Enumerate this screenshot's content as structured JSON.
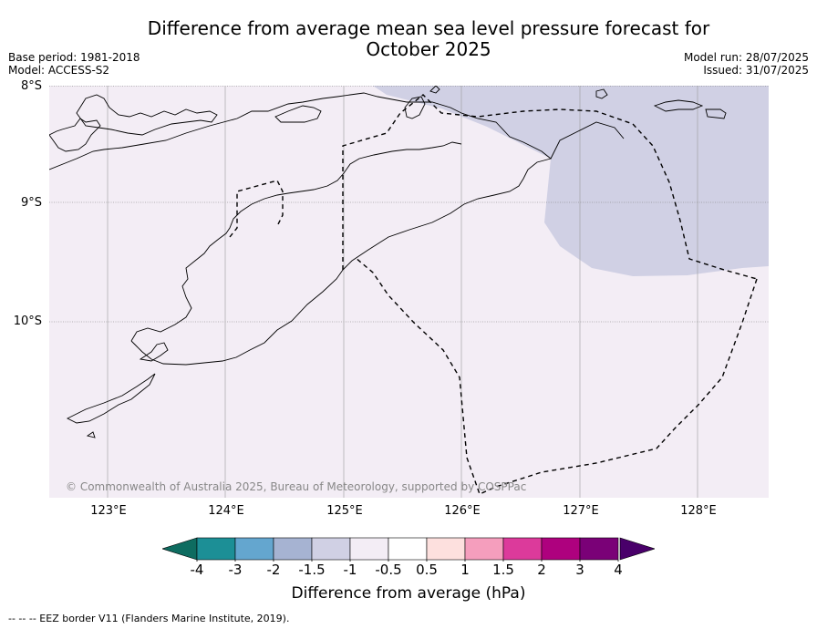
{
  "title": {
    "line1": "Difference from average mean sea level pressure forecast for",
    "line2": "October 2025"
  },
  "meta": {
    "base_period": "Base period: 1981-2018",
    "model": "Model: ACCESS-S2",
    "model_run": "Model run: 28/07/2025",
    "issued": "Issued: 31/07/2025"
  },
  "map": {
    "latitude_labels": [
      "8°S",
      "9°S",
      "10°S"
    ],
    "longitude_labels": [
      "123°E",
      "124°E",
      "125°E",
      "126°E",
      "127°E",
      "128°E"
    ],
    "copyright": "© Commonwealth of Australia 2025, Bureau of Meteorology, supported by COSPPac",
    "field_colors": {
      "minus_1_to_minus_0_5": "#f3edf5",
      "minus_1_5_to_minus_1": "#d0d0e4"
    },
    "eez_line_style": "dashed"
  },
  "colorbar": {
    "label": "Difference from average (hPa)",
    "ticks": [
      "-4",
      "-3",
      "-2",
      "-1.5",
      "-1",
      "-0.5",
      "0.5",
      "1",
      "1.5",
      "2",
      "3",
      "4"
    ],
    "colors": [
      "#1c8f96",
      "#64a6cf",
      "#a6b3d2",
      "#d0d0e4",
      "#f3edf5",
      "#ffffff",
      "#fde0de",
      "#f59ebd",
      "#dc3a9b",
      "#ae017e",
      "#7a0177"
    ],
    "under_color": "#0e6c60",
    "over_color": "#49006a"
  },
  "footnote": "--  --  -- EEZ border V11 (Flanders Marine Institute, 2019)."
}
